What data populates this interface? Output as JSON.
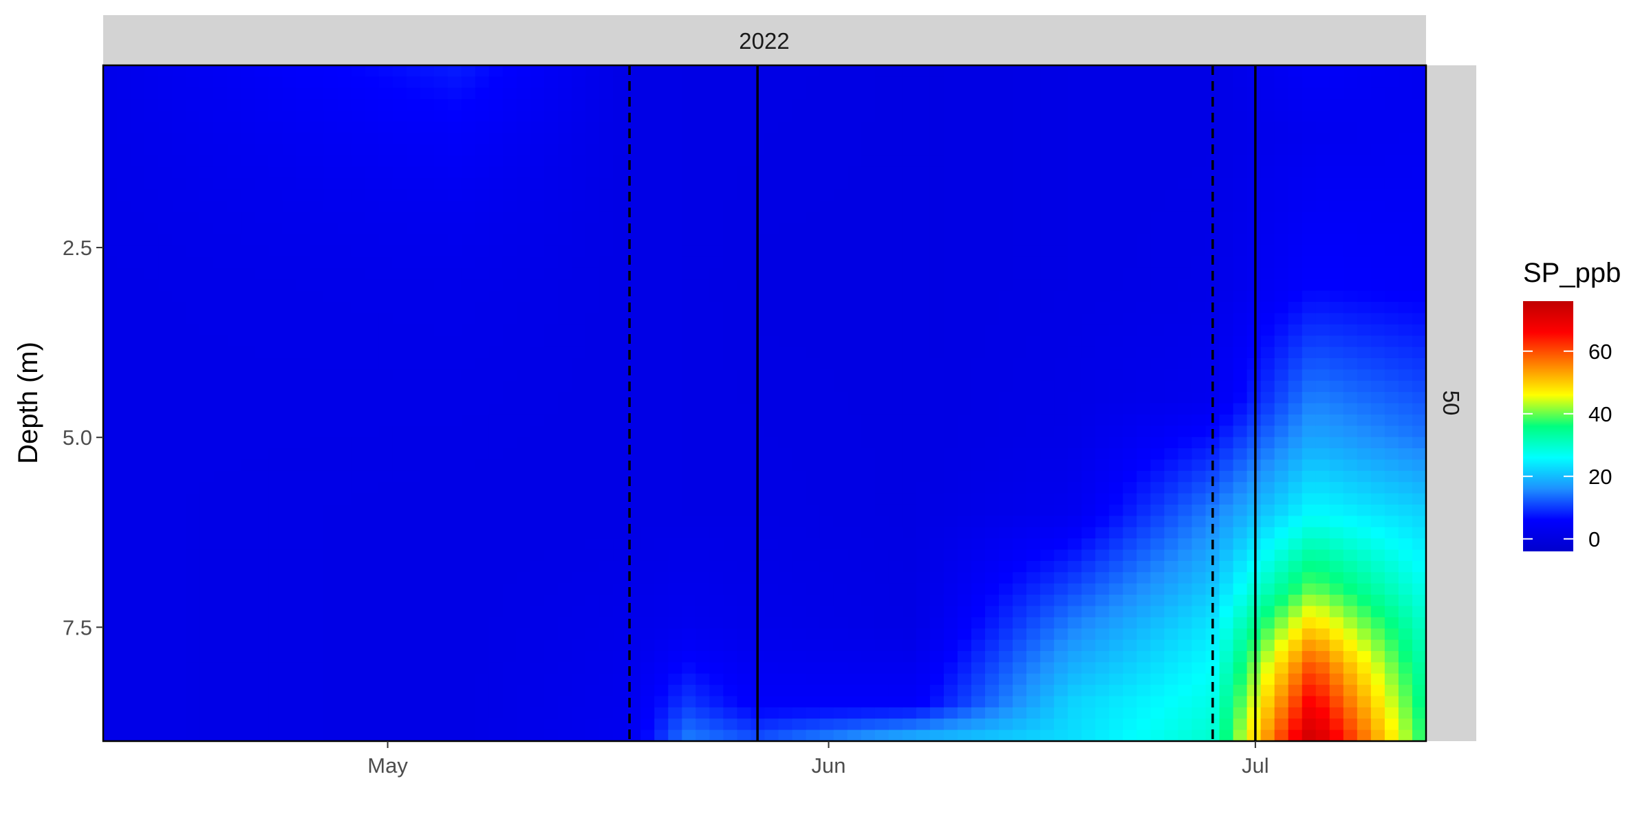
{
  "chart_data": {
    "type": "heatmap",
    "title": "",
    "xlabel": "",
    "ylabel": "Depth (m)",
    "facet": {
      "top_strip": "2022",
      "right_strip": "50"
    },
    "x": {
      "kind": "date",
      "range": [
        "2022-04-11",
        "2022-07-13"
      ],
      "ticks": [
        {
          "value": "2022-05-01",
          "label": "May"
        },
        {
          "value": "2022-06-01",
          "label": "Jun"
        },
        {
          "value": "2022-07-01",
          "label": "Jul"
        }
      ]
    },
    "y": {
      "reversed": true,
      "range": [
        0.1,
        9.0
      ],
      "ticks": [
        {
          "value": 2.5,
          "label": "2.5"
        },
        {
          "value": 5.0,
          "label": "5.0"
        },
        {
          "value": 7.5,
          "label": "7.5"
        }
      ]
    },
    "fill": {
      "name": "SP_ppb",
      "range": [
        -4,
        76
      ],
      "palette": [
        "#0000cc",
        "#0000ff",
        "#1e90ff",
        "#00ffff",
        "#00ff7f",
        "#ffff00",
        "#ff7f00",
        "#ff0000",
        "#c00000"
      ],
      "breaks": [
        {
          "value": 0,
          "label": "0"
        },
        {
          "value": 20,
          "label": "20"
        },
        {
          "value": 40,
          "label": "40"
        },
        {
          "value": 60,
          "label": "60"
        }
      ]
    },
    "vlines": [
      {
        "date": "2022-05-18",
        "style": "dashed"
      },
      {
        "date": "2022-05-27",
        "style": "solid"
      },
      {
        "date": "2022-06-28",
        "style": "dashed"
      },
      {
        "date": "2022-07-01",
        "style": "solid"
      }
    ],
    "profiles": [
      {
        "date": "2022-04-11",
        "depths": [
          0.1,
          3.0,
          6.0,
          9.0
        ],
        "values": [
          2,
          1.5,
          1.5,
          1.5
        ]
      },
      {
        "date": "2022-05-06",
        "depths": [
          0.1,
          1.0,
          2.0,
          3.0,
          6.0,
          9.0
        ],
        "values": [
          8,
          5,
          3,
          2,
          1,
          1
        ]
      },
      {
        "date": "2022-05-18",
        "depths": [
          0.1,
          3.0,
          6.0,
          7.5,
          9.0
        ],
        "values": [
          1,
          1,
          1,
          2,
          3
        ]
      },
      {
        "date": "2022-05-22",
        "depths": [
          0.1,
          3.0,
          6.0,
          7.5,
          8.5,
          9.0
        ],
        "values": [
          1,
          1,
          1,
          3,
          10,
          15
        ]
      },
      {
        "date": "2022-05-27",
        "depths": [
          0.1,
          3.0,
          6.0,
          7.5,
          8.5,
          9.0
        ],
        "values": [
          1,
          0.5,
          1,
          2,
          5,
          12
        ]
      },
      {
        "date": "2022-06-07",
        "depths": [
          0.1,
          3.0,
          6.0,
          7.5,
          8.5,
          9.0
        ],
        "values": [
          0.5,
          0.5,
          0.5,
          1,
          5,
          20
        ]
      },
      {
        "date": "2022-06-18",
        "depths": [
          0.1,
          3.0,
          5.0,
          6.0,
          7.5,
          8.5,
          9.0
        ],
        "values": [
          1,
          1,
          1.5,
          3,
          15,
          22,
          23
        ]
      },
      {
        "date": "2022-06-28",
        "depths": [
          0.1,
          3.0,
          4.5,
          6.0,
          7.5,
          8.5,
          9.0
        ],
        "values": [
          1,
          1.5,
          3,
          15,
          24,
          28,
          30
        ]
      },
      {
        "date": "2022-07-05",
        "depths": [
          0.1,
          1.0,
          3.0,
          4.0,
          5.0,
          6.0,
          7.0,
          8.0,
          9.0
        ],
        "values": [
          5,
          3,
          6,
          12,
          18,
          26,
          40,
          60,
          75
        ]
      },
      {
        "date": "2022-07-13",
        "depths": [
          0.1,
          3.0,
          5.0,
          6.0,
          7.5,
          9.0
        ],
        "values": [
          3,
          5,
          14,
          22,
          30,
          36
        ]
      }
    ]
  }
}
